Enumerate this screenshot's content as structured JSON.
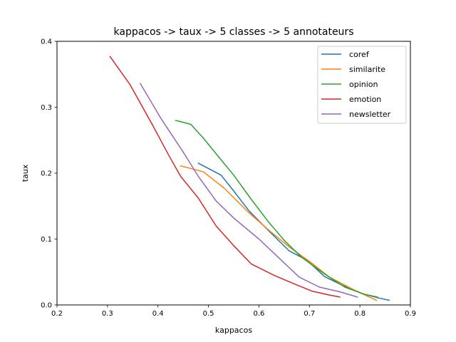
{
  "chart_data": {
    "type": "line",
    "title": "kappacos -> taux -> 5 classes -> 5 annotateurs",
    "xlabel": "kappacos",
    "ylabel": "taux",
    "xlim": [
      0.2,
      0.9
    ],
    "ylim": [
      0.0,
      0.4
    ],
    "xticks": [
      0.2,
      0.3,
      0.4,
      0.5,
      0.6,
      0.7,
      0.8,
      0.9
    ],
    "xtick_labels": [
      "0.2",
      "0.3",
      "0.4",
      "0.5",
      "0.6",
      "0.7",
      "0.8",
      "0.9"
    ],
    "yticks": [
      0.0,
      0.1,
      0.2,
      0.3,
      0.4
    ],
    "ytick_labels": [
      "0.0",
      "0.1",
      "0.2",
      "0.3",
      "0.4"
    ],
    "grid": false,
    "legend_position": "top-right",
    "series": [
      {
        "name": "coref",
        "color": "#1f77b4",
        "points": [
          [
            0.48,
            0.215
          ],
          [
            0.525,
            0.197
          ],
          [
            0.55,
            0.173
          ],
          [
            0.58,
            0.143
          ],
          [
            0.62,
            0.112
          ],
          [
            0.66,
            0.082
          ],
          [
            0.695,
            0.068
          ],
          [
            0.73,
            0.043
          ],
          [
            0.765,
            0.03
          ],
          [
            0.805,
            0.017
          ],
          [
            0.835,
            0.011
          ],
          [
            0.858,
            0.007
          ]
        ]
      },
      {
        "name": "similarite",
        "color": "#ff7f0e",
        "points": [
          [
            0.445,
            0.211
          ],
          [
            0.49,
            0.202
          ],
          [
            0.53,
            0.178
          ],
          [
            0.58,
            0.14
          ],
          [
            0.625,
            0.11
          ],
          [
            0.66,
            0.088
          ],
          [
            0.7,
            0.066
          ],
          [
            0.74,
            0.042
          ],
          [
            0.78,
            0.026
          ],
          [
            0.81,
            0.015
          ],
          [
            0.833,
            0.007
          ]
        ]
      },
      {
        "name": "opinion",
        "color": "#2ca02c",
        "points": [
          [
            0.435,
            0.28
          ],
          [
            0.465,
            0.274
          ],
          [
            0.49,
            0.253
          ],
          [
            0.52,
            0.225
          ],
          [
            0.55,
            0.197
          ],
          [
            0.585,
            0.16
          ],
          [
            0.62,
            0.125
          ],
          [
            0.65,
            0.098
          ],
          [
            0.685,
            0.072
          ],
          [
            0.73,
            0.047
          ],
          [
            0.77,
            0.027
          ],
          [
            0.81,
            0.016
          ],
          [
            0.835,
            0.012
          ]
        ]
      },
      {
        "name": "emotion",
        "color": "#d62728",
        "points": [
          [
            0.305,
            0.377
          ],
          [
            0.345,
            0.334
          ],
          [
            0.39,
            0.272
          ],
          [
            0.42,
            0.229
          ],
          [
            0.445,
            0.195
          ],
          [
            0.48,
            0.162
          ],
          [
            0.515,
            0.12
          ],
          [
            0.55,
            0.09
          ],
          [
            0.585,
            0.062
          ],
          [
            0.63,
            0.045
          ],
          [
            0.67,
            0.032
          ],
          [
            0.705,
            0.021
          ],
          [
            0.74,
            0.015
          ],
          [
            0.76,
            0.012
          ]
        ]
      },
      {
        "name": "newsletter",
        "color": "#9467bd",
        "points": [
          [
            0.365,
            0.336
          ],
          [
            0.405,
            0.284
          ],
          [
            0.45,
            0.232
          ],
          [
            0.48,
            0.195
          ],
          [
            0.515,
            0.158
          ],
          [
            0.55,
            0.132
          ],
          [
            0.6,
            0.1
          ],
          [
            0.64,
            0.071
          ],
          [
            0.68,
            0.042
          ],
          [
            0.72,
            0.027
          ],
          [
            0.76,
            0.02
          ],
          [
            0.795,
            0.012
          ]
        ]
      }
    ]
  }
}
